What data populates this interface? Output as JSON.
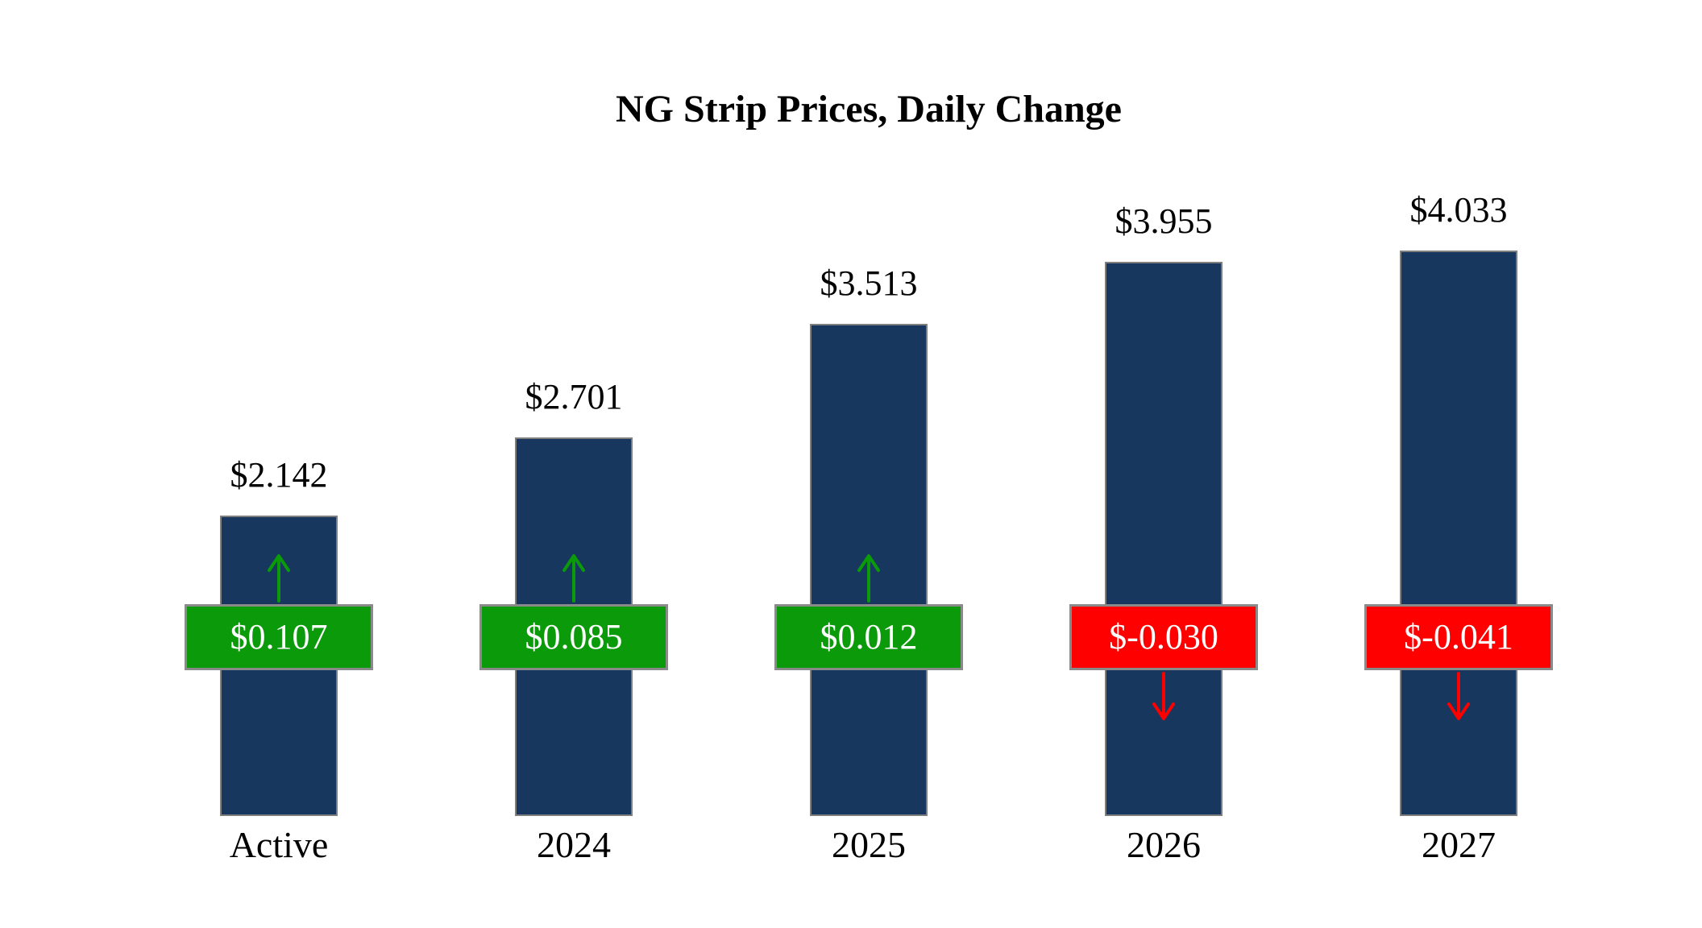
{
  "title": "NG Strip Prices, Daily Change",
  "colors": {
    "background": "#ffffff",
    "bar_fill": "#17375E",
    "bar_border": "#7f7f7f",
    "positive": "#0a9a0a",
    "negative": "#fe0000",
    "badge_border": "#8a8a8a",
    "badge_text": "#ffffff",
    "label_text": "#000000"
  },
  "chart_data": {
    "type": "bar",
    "title": "NG Strip Prices, Daily Change",
    "categories": [
      "Active",
      "2024",
      "2025",
      "2026",
      "2027"
    ],
    "series": [
      {
        "name": "Strip Price",
        "values": [
          2.142,
          2.701,
          3.513,
          3.955,
          4.033
        ]
      },
      {
        "name": "Daily Change",
        "values": [
          0.107,
          0.085,
          0.012,
          -0.03,
          -0.041
        ]
      }
    ],
    "value_labels": [
      "$2.142",
      "$2.701",
      "$3.513",
      "$3.955",
      "$4.033"
    ],
    "change_labels": [
      "$0.107",
      "$0.085",
      "$0.012",
      "$-0.030",
      "$-0.041"
    ],
    "change_directions": [
      "up",
      "up",
      "up",
      "down",
      "down"
    ],
    "ylim": [
      0,
      4.5
    ],
    "grid": false,
    "legend": "none",
    "xlabel": "",
    "ylabel": ""
  }
}
